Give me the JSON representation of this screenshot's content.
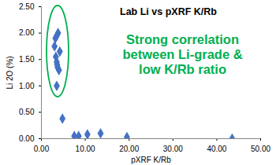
{
  "chart_data": {
    "type": "scatter",
    "title": "Lab Li vs pXRF K/Rb",
    "x_label": "pXRF K/Rb",
    "y_label": "Li 2O (%)",
    "annotations": [
      "Strong correlation\nbetween Li-grade &\nlow K/Rb ratio"
    ],
    "x": [
      3.2,
      3.5,
      3.8,
      3.0,
      4.2,
      3.3,
      3.5,
      3.6,
      3.7,
      4.0,
      3.5,
      4.8,
      7.5,
      8.5,
      10.5,
      13.5,
      19.5,
      43.5
    ],
    "values": [
      1.9,
      1.95,
      2.0,
      1.75,
      1.65,
      1.55,
      1.45,
      1.4,
      1.35,
      1.3,
      1.0,
      0.38,
      0.05,
      0.05,
      0.08,
      0.1,
      0.03,
      0.0
    ],
    "color": "#4472c4",
    "marker": "diamond",
    "xlim": [
      0,
      50
    ],
    "ylim": [
      0,
      2.5
    ],
    "xticks": [
      {
        "value": 0,
        "label": "0.00"
      },
      {
        "value": 10,
        "label": "10.00"
      },
      {
        "value": 20,
        "label": "20.00"
      },
      {
        "value": 30,
        "label": "30.00"
      },
      {
        "value": 40,
        "label": "40.00"
      },
      {
        "value": 50,
        "label": "50.00"
      }
    ],
    "yticks": [
      {
        "value": 0,
        "label": "0.00"
      },
      {
        "value": 0.5,
        "label": "0.50"
      },
      {
        "value": 1,
        "label": "1.00"
      },
      {
        "value": 1.5,
        "label": "1.50"
      },
      {
        "value": 2,
        "label": "2.00"
      },
      {
        "value": 2.5,
        "label": "2.50"
      }
    ],
    "grid": false
  }
}
